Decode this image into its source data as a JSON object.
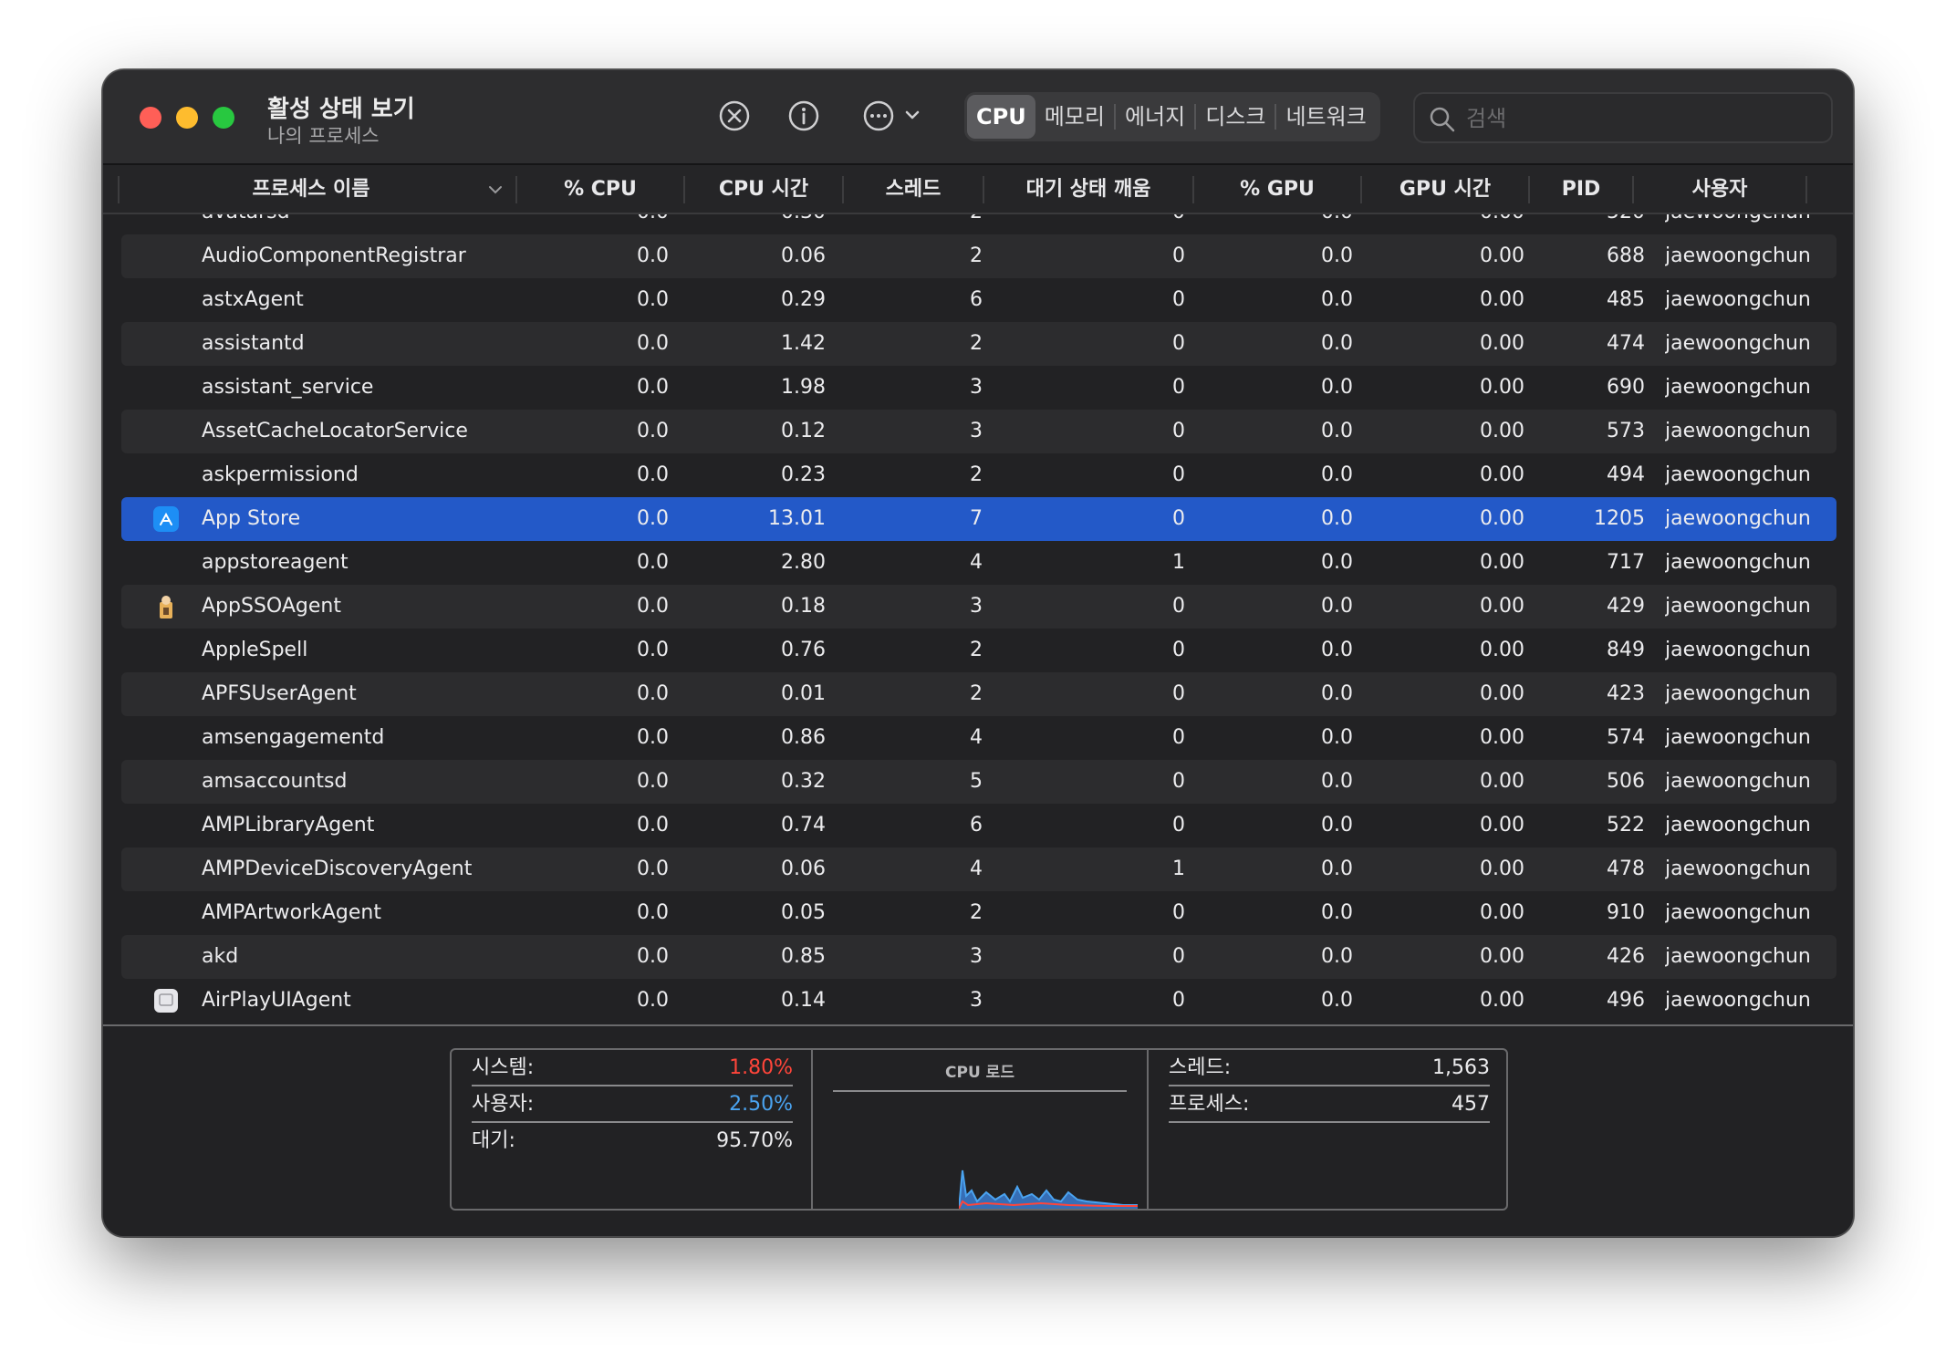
{
  "window": {
    "title": "활성 상태 보기",
    "subtitle": "나의 프로세스"
  },
  "toolbar": {
    "stop_icon": "x-circle-icon",
    "info_icon": "info-icon",
    "more_icon": "ellipsis-circle-icon",
    "tabs": [
      {
        "label": "CPU",
        "active": true
      },
      {
        "label": "메모리",
        "active": false
      },
      {
        "label": "에너지",
        "active": false
      },
      {
        "label": "디스크",
        "active": false
      },
      {
        "label": "네트워크",
        "active": false
      }
    ],
    "search_placeholder": "검색"
  },
  "columns": {
    "name": "프로세스 이름",
    "cpu": "% CPU",
    "cpu_time": "CPU 시간",
    "threads": "스레드",
    "idle_wake": "대기 상태 깨움",
    "gpu": "% GPU",
    "gpu_time": "GPU 시간",
    "pid": "PID",
    "user": "사용자"
  },
  "partial_row": {
    "name": "avatarsd",
    "cpu": "0.0",
    "cpu_time": "0.30",
    "threads": "2",
    "idle_wake": "0",
    "gpu": "0.0",
    "gpu_time": "0.00",
    "pid": "520",
    "user": "jaewoongchung"
  },
  "rows": [
    {
      "name": "AudioComponentRegistrar",
      "cpu": "0.0",
      "cpu_time": "0.06",
      "threads": "2",
      "idle_wake": "0",
      "gpu": "0.0",
      "gpu_time": "0.00",
      "pid": "688",
      "user": "jaewoongchung",
      "icon": ""
    },
    {
      "name": "astxAgent",
      "cpu": "0.0",
      "cpu_time": "0.29",
      "threads": "6",
      "idle_wake": "0",
      "gpu": "0.0",
      "gpu_time": "0.00",
      "pid": "485",
      "user": "jaewoongchung",
      "icon": ""
    },
    {
      "name": "assistantd",
      "cpu": "0.0",
      "cpu_time": "1.42",
      "threads": "2",
      "idle_wake": "0",
      "gpu": "0.0",
      "gpu_time": "0.00",
      "pid": "474",
      "user": "jaewoongchung",
      "icon": ""
    },
    {
      "name": "assistant_service",
      "cpu": "0.0",
      "cpu_time": "1.98",
      "threads": "3",
      "idle_wake": "0",
      "gpu": "0.0",
      "gpu_time": "0.00",
      "pid": "690",
      "user": "jaewoongchung",
      "icon": ""
    },
    {
      "name": "AssetCacheLocatorService",
      "cpu": "0.0",
      "cpu_time": "0.12",
      "threads": "3",
      "idle_wake": "0",
      "gpu": "0.0",
      "gpu_time": "0.00",
      "pid": "573",
      "user": "jaewoongchung",
      "icon": ""
    },
    {
      "name": "askpermissiond",
      "cpu": "0.0",
      "cpu_time": "0.23",
      "threads": "2",
      "idle_wake": "0",
      "gpu": "0.0",
      "gpu_time": "0.00",
      "pid": "494",
      "user": "jaewoongchung",
      "icon": ""
    },
    {
      "name": "App Store",
      "cpu": "0.0",
      "cpu_time": "13.01",
      "threads": "7",
      "idle_wake": "0",
      "gpu": "0.0",
      "gpu_time": "0.00",
      "pid": "1205",
      "user": "jaewoongchung",
      "icon": "app-store-icon",
      "selected": true
    },
    {
      "name": "appstoreagent",
      "cpu": "0.0",
      "cpu_time": "2.80",
      "threads": "4",
      "idle_wake": "1",
      "gpu": "0.0",
      "gpu_time": "0.00",
      "pid": "717",
      "user": "jaewoongchung",
      "icon": ""
    },
    {
      "name": "AppSSOAgent",
      "cpu": "0.0",
      "cpu_time": "0.18",
      "threads": "3",
      "idle_wake": "0",
      "gpu": "0.0",
      "gpu_time": "0.00",
      "pid": "429",
      "user": "jaewoongchung",
      "icon": "app-sso-agent-icon"
    },
    {
      "name": "AppleSpell",
      "cpu": "0.0",
      "cpu_time": "0.76",
      "threads": "2",
      "idle_wake": "0",
      "gpu": "0.0",
      "gpu_time": "0.00",
      "pid": "849",
      "user": "jaewoongchung",
      "icon": ""
    },
    {
      "name": "APFSUserAgent",
      "cpu": "0.0",
      "cpu_time": "0.01",
      "threads": "2",
      "idle_wake": "0",
      "gpu": "0.0",
      "gpu_time": "0.00",
      "pid": "423",
      "user": "jaewoongchung",
      "icon": ""
    },
    {
      "name": "amsengagementd",
      "cpu": "0.0",
      "cpu_time": "0.86",
      "threads": "4",
      "idle_wake": "0",
      "gpu": "0.0",
      "gpu_time": "0.00",
      "pid": "574",
      "user": "jaewoongchung",
      "icon": ""
    },
    {
      "name": "amsaccountsd",
      "cpu": "0.0",
      "cpu_time": "0.32",
      "threads": "5",
      "idle_wake": "0",
      "gpu": "0.0",
      "gpu_time": "0.00",
      "pid": "506",
      "user": "jaewoongchung",
      "icon": ""
    },
    {
      "name": "AMPLibraryAgent",
      "cpu": "0.0",
      "cpu_time": "0.74",
      "threads": "6",
      "idle_wake": "0",
      "gpu": "0.0",
      "gpu_time": "0.00",
      "pid": "522",
      "user": "jaewoongchung",
      "icon": ""
    },
    {
      "name": "AMPDeviceDiscoveryAgent",
      "cpu": "0.0",
      "cpu_time": "0.06",
      "threads": "4",
      "idle_wake": "1",
      "gpu": "0.0",
      "gpu_time": "0.00",
      "pid": "478",
      "user": "jaewoongchung",
      "icon": ""
    },
    {
      "name": "AMPArtworkAgent",
      "cpu": "0.0",
      "cpu_time": "0.05",
      "threads": "2",
      "idle_wake": "0",
      "gpu": "0.0",
      "gpu_time": "0.00",
      "pid": "910",
      "user": "jaewoongchung",
      "icon": ""
    },
    {
      "name": "akd",
      "cpu": "0.0",
      "cpu_time": "0.85",
      "threads": "3",
      "idle_wake": "0",
      "gpu": "0.0",
      "gpu_time": "0.00",
      "pid": "426",
      "user": "jaewoongchung",
      "icon": ""
    },
    {
      "name": "AirPlayUIAgent",
      "cpu": "0.0",
      "cpu_time": "0.14",
      "threads": "3",
      "idle_wake": "0",
      "gpu": "0.0",
      "gpu_time": "0.00",
      "pid": "496",
      "user": "jaewoongchung",
      "icon": "airplay-ui-agent-icon"
    }
  ],
  "footer": {
    "system_label": "시스템:",
    "system_value": "1.80%",
    "user_label": "사용자:",
    "user_value": "2.50%",
    "idle_label": "대기:",
    "idle_value": "95.70%",
    "cpu_load_title": "CPU 로드",
    "threads_label": "스레드:",
    "threads_value": "1,563",
    "processes_label": "프로세스:",
    "processes_value": "457"
  },
  "colors": {
    "system": "#ff453a",
    "user": "#4aa3f0",
    "selection": "#2359c8"
  }
}
